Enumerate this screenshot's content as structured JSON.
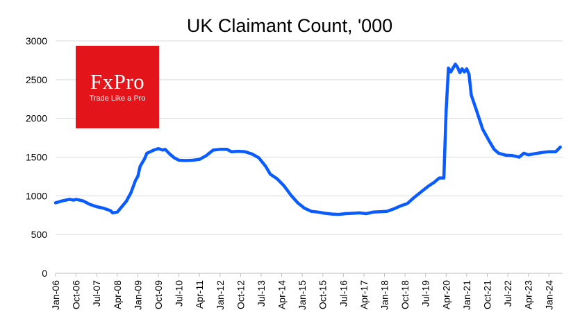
{
  "logo": {
    "name": "FxPro",
    "tagline": "Trade Like a Pro",
    "color": "#e3151a"
  },
  "chart_data": {
    "type": "line",
    "title": "UK Claimant Count, '000",
    "xlabel": "",
    "ylabel": "",
    "ylim": [
      0,
      3000
    ],
    "yticks": [
      0,
      500,
      1000,
      1500,
      2000,
      2500,
      3000
    ],
    "xticks": [
      "Jan-06",
      "Oct-06",
      "Jul-07",
      "Apr-08",
      "Jan-09",
      "Oct-09",
      "Jul-10",
      "Apr-11",
      "Jan-12",
      "Oct-12",
      "Jul-13",
      "Apr-14",
      "Jan-15",
      "Oct-15",
      "Jul-16",
      "Apr-17",
      "Jan-18",
      "Oct-18",
      "Jul-19",
      "Apr-20",
      "Jan-21",
      "Oct-21",
      "Jul-22",
      "Apr-23",
      "Jan-24"
    ],
    "grid": {
      "horizontal": true,
      "vertical": false
    },
    "legend": "none",
    "series": [
      {
        "color": "#0b5cff",
        "points": [
          [
            "2006-01",
            910
          ],
          [
            "2006-04",
            935
          ],
          [
            "2006-07",
            955
          ],
          [
            "2006-09",
            945
          ],
          [
            "2006-10",
            955
          ],
          [
            "2007-01",
            935
          ],
          [
            "2007-04",
            890
          ],
          [
            "2007-07",
            860
          ],
          [
            "2007-10",
            840
          ],
          [
            "2008-01",
            810
          ],
          [
            "2008-02",
            780
          ],
          [
            "2008-04",
            790
          ],
          [
            "2008-06",
            860
          ],
          [
            "2008-08",
            930
          ],
          [
            "2008-10",
            1040
          ],
          [
            "2008-12",
            1200
          ],
          [
            "2009-01",
            1250
          ],
          [
            "2009-02",
            1380
          ],
          [
            "2009-04",
            1480
          ],
          [
            "2009-05",
            1550
          ],
          [
            "2009-08",
            1590
          ],
          [
            "2009-10",
            1610
          ],
          [
            "2009-12",
            1590
          ],
          [
            "2010-01",
            1600
          ],
          [
            "2010-03",
            1540
          ],
          [
            "2010-05",
            1490
          ],
          [
            "2010-07",
            1460
          ],
          [
            "2010-10",
            1455
          ],
          [
            "2011-01",
            1460
          ],
          [
            "2011-04",
            1470
          ],
          [
            "2011-07",
            1520
          ],
          [
            "2011-10",
            1590
          ],
          [
            "2012-01",
            1600
          ],
          [
            "2012-04",
            1600
          ],
          [
            "2012-06",
            1570
          ],
          [
            "2012-09",
            1575
          ],
          [
            "2012-12",
            1570
          ],
          [
            "2013-03",
            1540
          ],
          [
            "2013-06",
            1490
          ],
          [
            "2013-09",
            1380
          ],
          [
            "2013-11",
            1280
          ],
          [
            "2014-02",
            1220
          ],
          [
            "2014-05",
            1130
          ],
          [
            "2014-08",
            1010
          ],
          [
            "2014-11",
            910
          ],
          [
            "2015-02",
            840
          ],
          [
            "2015-05",
            800
          ],
          [
            "2015-08",
            790
          ],
          [
            "2015-11",
            775
          ],
          [
            "2016-02",
            765
          ],
          [
            "2016-05",
            760
          ],
          [
            "2016-08",
            770
          ],
          [
            "2016-11",
            775
          ],
          [
            "2017-02",
            780
          ],
          [
            "2017-05",
            770
          ],
          [
            "2017-08",
            790
          ],
          [
            "2017-11",
            795
          ],
          [
            "2018-02",
            800
          ],
          [
            "2018-05",
            830
          ],
          [
            "2018-08",
            870
          ],
          [
            "2018-11",
            900
          ],
          [
            "2019-02",
            980
          ],
          [
            "2019-05",
            1050
          ],
          [
            "2019-08",
            1120
          ],
          [
            "2019-11",
            1180
          ],
          [
            "2020-01",
            1230
          ],
          [
            "2020-03",
            1230
          ],
          [
            "2020-04",
            2100
          ],
          [
            "2020-05",
            2650
          ],
          [
            "2020-06",
            2600
          ],
          [
            "2020-08",
            2700
          ],
          [
            "2020-09",
            2660
          ],
          [
            "2020-10",
            2590
          ],
          [
            "2020-11",
            2640
          ],
          [
            "2020-12",
            2600
          ],
          [
            "2021-01",
            2640
          ],
          [
            "2021-02",
            2570
          ],
          [
            "2021-03",
            2300
          ],
          [
            "2021-05",
            2130
          ],
          [
            "2021-08",
            1860
          ],
          [
            "2021-11",
            1700
          ],
          [
            "2022-01",
            1600
          ],
          [
            "2022-03",
            1550
          ],
          [
            "2022-06",
            1525
          ],
          [
            "2022-09",
            1520
          ],
          [
            "2022-12",
            1500
          ],
          [
            "2023-02",
            1550
          ],
          [
            "2023-04",
            1530
          ],
          [
            "2023-07",
            1545
          ],
          [
            "2023-10",
            1560
          ],
          [
            "2024-01",
            1570
          ],
          [
            "2024-04",
            1570
          ],
          [
            "2024-06",
            1630
          ]
        ]
      }
    ]
  }
}
